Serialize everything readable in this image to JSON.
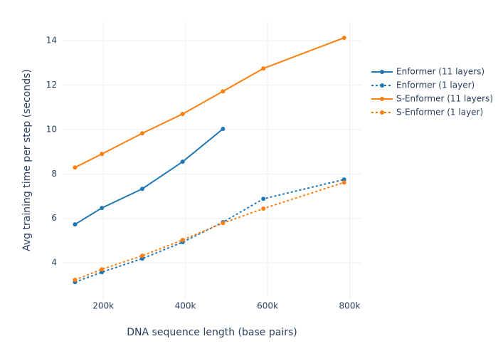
{
  "chart_data": {
    "type": "line",
    "xlabel": "DNA sequence length (base pairs)",
    "ylabel": "Avg training time per step (seconds)",
    "x": [
      131072,
      196608,
      294912,
      393216,
      491520,
      589824,
      786432
    ],
    "series": [
      {
        "name": "Enformer (11 layers)",
        "color": "#1f77b4",
        "dash": "solid",
        "values": [
          5.73,
          6.47,
          7.33,
          8.55,
          10.03,
          null,
          null
        ]
      },
      {
        "name": "Enformer (1 layer)",
        "color": "#1f77b4",
        "dash": "dot",
        "values": [
          3.13,
          3.58,
          4.19,
          4.93,
          5.83,
          6.88,
          7.75
        ]
      },
      {
        "name": "S-Enformer (11 layers)",
        "color": "#ff7f0e",
        "dash": "solid",
        "values": [
          8.29,
          8.9,
          9.83,
          10.7,
          11.72,
          12.75,
          14.13
        ]
      },
      {
        "name": "S-Enformer (1 layer)",
        "color": "#ff7f0e",
        "dash": "dot",
        "values": [
          3.23,
          3.71,
          4.32,
          5.03,
          5.79,
          6.44,
          7.62
        ]
      }
    ],
    "xlim": [
      101000,
      828600
    ],
    "ylim": [
      2.37,
      14.87
    ],
    "xticks": [
      {
        "value": 200000,
        "label": "200k"
      },
      {
        "value": 400000,
        "label": "400k"
      },
      {
        "value": 600000,
        "label": "600k"
      },
      {
        "value": 800000,
        "label": "800k"
      }
    ],
    "yticks": [
      4,
      6,
      8,
      10,
      12,
      14
    ],
    "grid": true,
    "legend": "right"
  }
}
